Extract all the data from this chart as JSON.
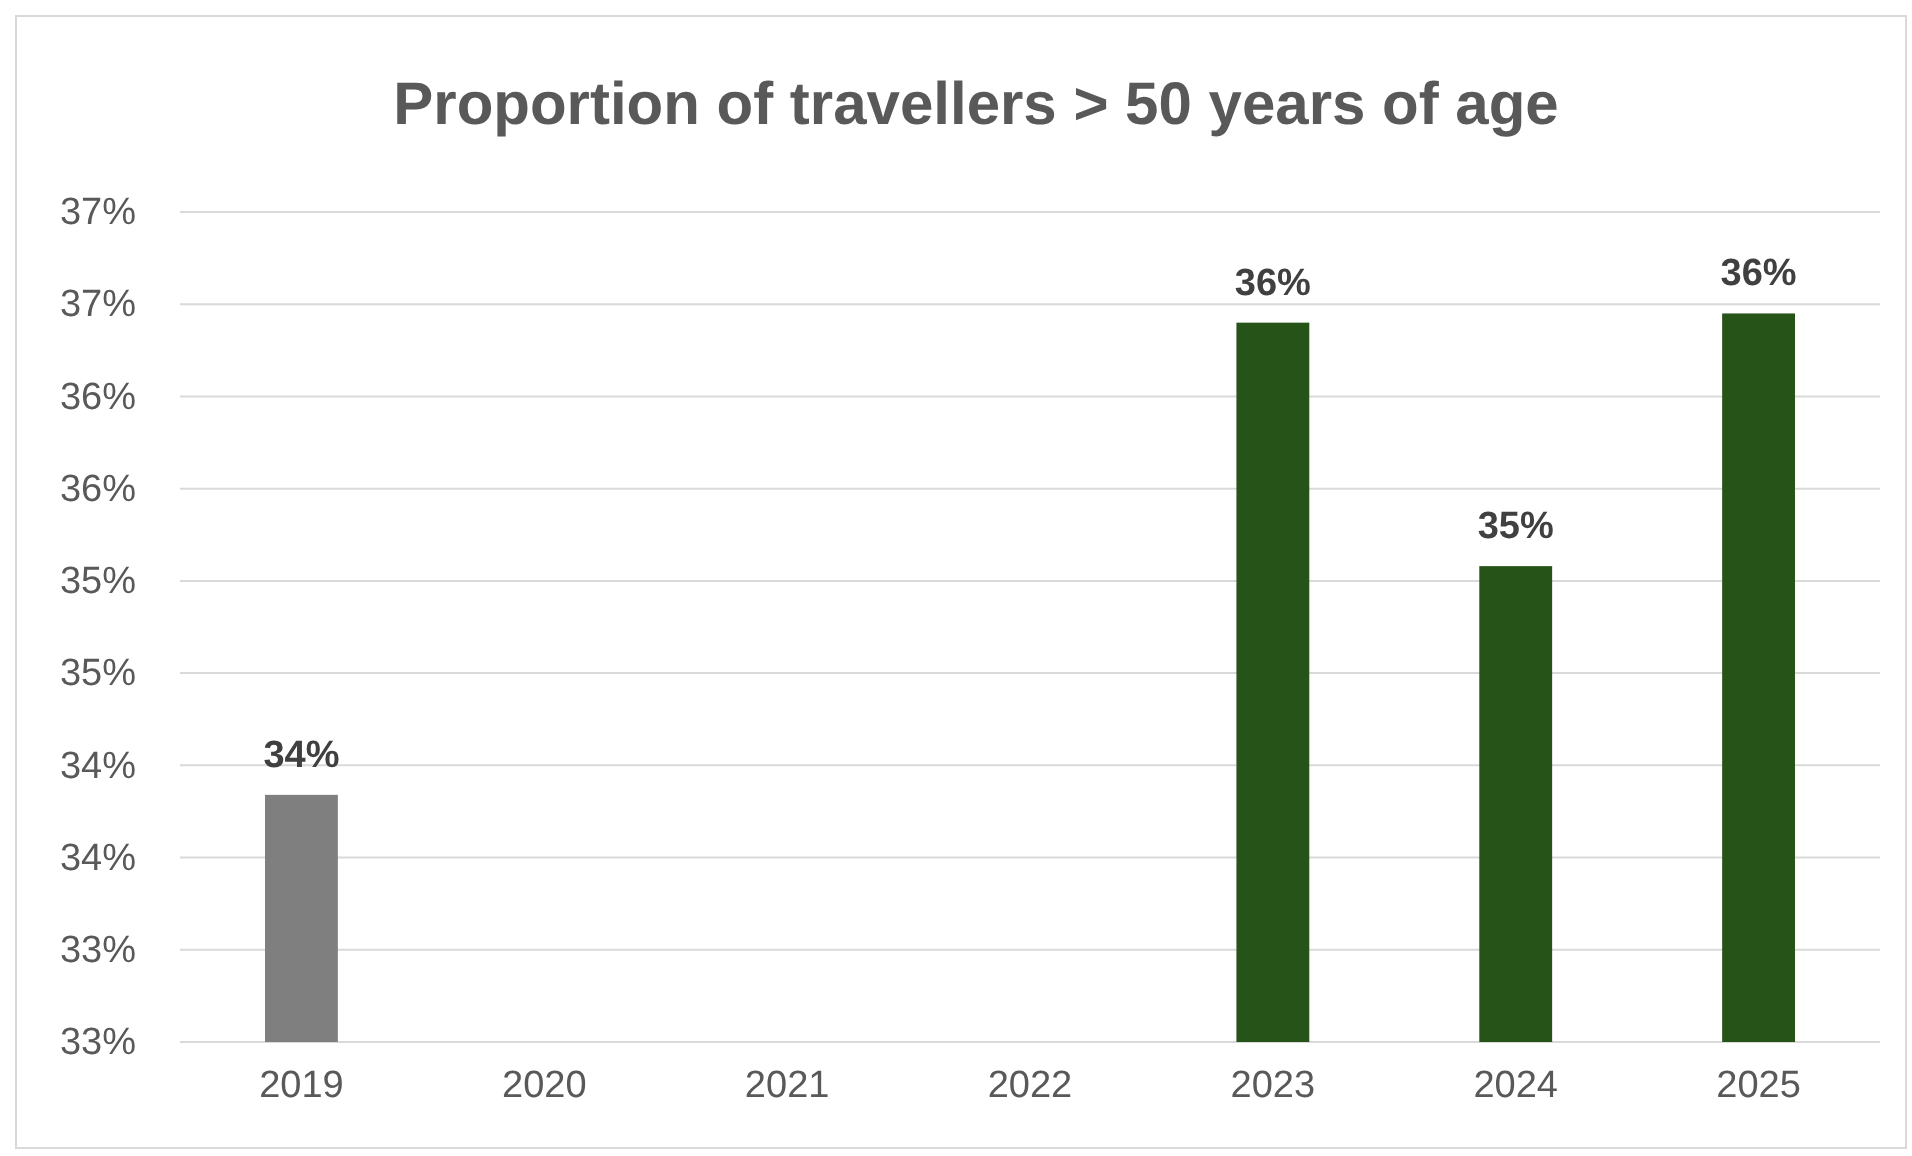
{
  "chart_data": {
    "type": "bar",
    "title": "Proportion of travellers > 50 years of age",
    "categories": [
      "2019",
      "2020",
      "2021",
      "2022",
      "2023",
      "2024",
      "2025"
    ],
    "values": [
      33.84,
      null,
      null,
      null,
      36.4,
      35.08,
      36.45
    ],
    "colors": [
      "#7f7f7f",
      null,
      null,
      null,
      "#265318",
      "#265318",
      "#265318"
    ],
    "value_labels": [
      "34%",
      null,
      null,
      null,
      "36%",
      "35%",
      "36%"
    ],
    "ylim": [
      32.5,
      37
    ],
    "yticks": [
      {
        "value": 32.5,
        "label": "33%"
      },
      {
        "value": 33,
        "label": "33%"
      },
      {
        "value": 33.5,
        "label": "34%"
      },
      {
        "value": 34,
        "label": "34%"
      },
      {
        "value": 34.5,
        "label": "35%"
      },
      {
        "value": 35,
        "label": "35%"
      },
      {
        "value": 35.5,
        "label": "36%"
      },
      {
        "value": 36,
        "label": "36%"
      },
      {
        "value": 36.5,
        "label": "37%"
      },
      {
        "value": 37,
        "label": "37%"
      }
    ],
    "grid": "y"
  }
}
